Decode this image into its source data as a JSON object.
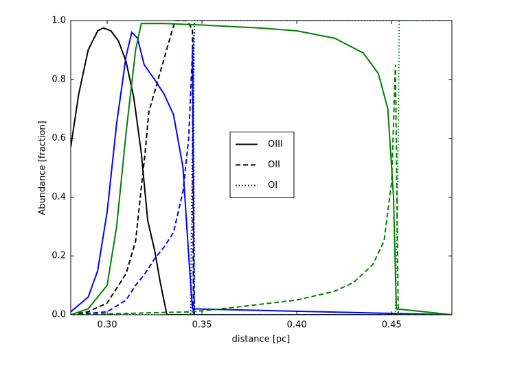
{
  "chart_data": {
    "type": "line",
    "xlabel": "distance [pc]",
    "ylabel": "Abundance [fraction]",
    "xlim": [
      0.2808,
      0.4818
    ],
    "ylim": [
      0,
      1
    ],
    "xticks": [
      {
        "value": 0.3,
        "label": "0.30"
      },
      {
        "value": 0.35,
        "label": "0.35"
      },
      {
        "value": 0.4,
        "label": "0.40"
      },
      {
        "value": 0.45,
        "label": "0.45"
      }
    ],
    "yticks": [
      {
        "value": 0,
        "label": "0.0"
      },
      {
        "value": 0.2,
        "label": "0.2"
      },
      {
        "value": 0.4,
        "label": "0.4"
      },
      {
        "value": 0.6,
        "label": "0.6"
      },
      {
        "value": 0.8,
        "label": "0.8"
      },
      {
        "value": 1,
        "label": "1.0"
      }
    ],
    "legend": "center",
    "series": [
      {
        "name": "OIII",
        "color": "#000000",
        "linestyle": "solid",
        "x": [
          0.2808,
          0.285,
          0.29,
          0.295,
          0.298,
          0.302,
          0.306,
          0.31,
          0.314,
          0.318,
          0.3214,
          0.325,
          0.328,
          0.3315,
          0.4818
        ],
        "values": [
          0.57,
          0.75,
          0.9,
          0.965,
          0.975,
          0.965,
          0.93,
          0.86,
          0.74,
          0.55,
          0.32,
          0.22,
          0.11,
          0,
          0
        ]
      },
      {
        "name": "OII",
        "color": "#000000",
        "linestyle": "dashed",
        "x": [
          0.2808,
          0.29,
          0.3,
          0.31,
          0.315,
          0.32,
          0.322,
          0.326,
          0.33,
          0.334,
          0.336,
          0.342,
          0.345,
          0.3455,
          0.4818
        ],
        "values": [
          0,
          0.01,
          0.04,
          0.14,
          0.25,
          0.55,
          0.69,
          0.78,
          0.87,
          0.96,
          1,
          1,
          0.97,
          0,
          0
        ]
      },
      {
        "name": "OI",
        "color": "#000000",
        "linestyle": "dotted",
        "x": [
          0.2808,
          0.344,
          0.346,
          0.4818
        ],
        "values": [
          0,
          0,
          1,
          1
        ]
      },
      {
        "color": "#0000ff",
        "linestyle": "solid",
        "x": [
          0.2808,
          0.29,
          0.295,
          0.3,
          0.305,
          0.31,
          0.313,
          0.316,
          0.3195,
          0.325,
          0.33,
          0.335,
          0.34,
          0.343,
          0.345,
          0.4818
        ],
        "values": [
          0.01,
          0.06,
          0.15,
          0.35,
          0.65,
          0.88,
          0.96,
          0.94,
          0.85,
          0.8,
          0.75,
          0.68,
          0.5,
          0.2,
          0.02,
          0
        ]
      },
      {
        "color": "#0000ff",
        "linestyle": "dashed",
        "x": [
          0.2808,
          0.3,
          0.31,
          0.315,
          0.32,
          0.325,
          0.33,
          0.335,
          0.34,
          0.343,
          0.345,
          0.346,
          0.4818
        ],
        "values": [
          0,
          0.01,
          0.05,
          0.1,
          0.14,
          0.19,
          0.23,
          0.28,
          0.42,
          0.6,
          0.9,
          0,
          0
        ]
      },
      {
        "color": "#0000ff",
        "linestyle": "dotted",
        "x": [
          0.2808,
          0.344,
          0.3455,
          0.346,
          0.4818
        ],
        "values": [
          0,
          0,
          0.95,
          0,
          0
        ]
      },
      {
        "color": "#008000",
        "linestyle": "solid",
        "x": [
          0.2808,
          0.29,
          0.3,
          0.305,
          0.31,
          0.315,
          0.318,
          0.33,
          0.35,
          0.38,
          0.4,
          0.42,
          0.435,
          0.443,
          0.448,
          0.451,
          0.4525,
          0.4818
        ],
        "values": [
          0,
          0.02,
          0.1,
          0.3,
          0.62,
          0.9,
          0.99,
          0.99,
          0.985,
          0.975,
          0.965,
          0.94,
          0.89,
          0.82,
          0.7,
          0.4,
          0.02,
          0
        ]
      },
      {
        "color": "#008000",
        "linestyle": "dashed",
        "x": [
          0.2808,
          0.345,
          0.36,
          0.38,
          0.4,
          0.42,
          0.43,
          0.44,
          0.446,
          0.45,
          0.452,
          0.4535,
          0.4818
        ],
        "values": [
          0,
          0.01,
          0.02,
          0.035,
          0.05,
          0.08,
          0.11,
          0.17,
          0.25,
          0.45,
          0.85,
          0,
          0
        ]
      },
      {
        "color": "#008000",
        "linestyle": "dotted",
        "x": [
          0.2808,
          0.452,
          0.4535,
          0.454,
          0.4818
        ],
        "values": [
          0,
          0,
          0.6,
          1,
          1
        ]
      }
    ]
  }
}
